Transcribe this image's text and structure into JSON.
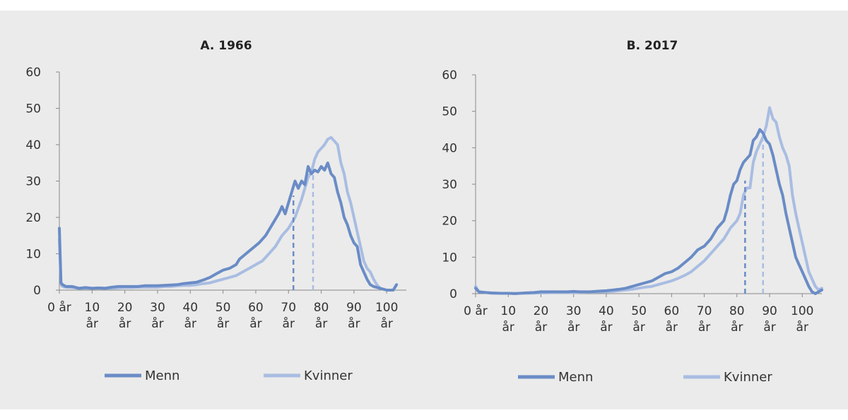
{
  "colors": {
    "menn": "#6a8cc6",
    "kvinner": "#a9bde2",
    "background": "#ebebeb"
  },
  "chart_data": [
    {
      "type": "line",
      "title": "A. 1966",
      "x_ticks": [
        0,
        10,
        20,
        30,
        40,
        50,
        60,
        70,
        80,
        90,
        100
      ],
      "x_tick_labels": [
        [
          "0 år"
        ],
        [
          "10",
          "år"
        ],
        [
          "20",
          "år"
        ],
        [
          "30",
          "år"
        ],
        [
          "40",
          "år"
        ],
        [
          "50",
          "år"
        ],
        [
          "60",
          "år"
        ],
        [
          "70",
          "år"
        ],
        [
          "80",
          "år"
        ],
        [
          "90",
          "år"
        ],
        [
          "100",
          "år"
        ]
      ],
      "xlim": [
        0,
        106
      ],
      "ylim": [
        0,
        60
      ],
      "y_ticks": [
        0,
        10,
        20,
        30,
        40,
        50,
        60
      ],
      "legend": "bottom",
      "series": [
        {
          "name": "Menn",
          "points": [
            [
              0,
              17
            ],
            [
              0.5,
              2
            ],
            [
              1,
              1.5
            ],
            [
              2,
              1
            ],
            [
              4,
              1
            ],
            [
              6,
              0.5
            ],
            [
              8,
              0.7
            ],
            [
              10,
              0.5
            ],
            [
              12,
              0.6
            ],
            [
              14,
              0.5
            ],
            [
              16,
              0.8
            ],
            [
              18,
              1
            ],
            [
              20,
              1
            ],
            [
              22,
              1
            ],
            [
              24,
              1
            ],
            [
              26,
              1.2
            ],
            [
              28,
              1.2
            ],
            [
              30,
              1.2
            ],
            [
              32,
              1.3
            ],
            [
              34,
              1.4
            ],
            [
              36,
              1.5
            ],
            [
              38,
              1.8
            ],
            [
              40,
              2
            ],
            [
              42,
              2.2
            ],
            [
              44,
              2.8
            ],
            [
              46,
              3.5
            ],
            [
              48,
              4.5
            ],
            [
              50,
              5.5
            ],
            [
              52,
              6
            ],
            [
              54,
              7
            ],
            [
              55,
              8.5
            ],
            [
              57,
              10
            ],
            [
              59,
              11.5
            ],
            [
              61,
              13
            ],
            [
              63,
              15
            ],
            [
              65,
              18
            ],
            [
              67,
              21
            ],
            [
              68,
              23
            ],
            [
              69,
              21
            ],
            [
              70,
              24
            ],
            [
              71,
              27
            ],
            [
              72,
              30
            ],
            [
              73,
              28
            ],
            [
              74,
              30
            ],
            [
              75,
              29
            ],
            [
              76,
              34
            ],
            [
              77,
              32
            ],
            [
              78,
              33
            ],
            [
              79,
              32.5
            ],
            [
              80,
              34
            ],
            [
              81,
              33
            ],
            [
              82,
              35
            ],
            [
              83,
              32
            ],
            [
              84,
              31
            ],
            [
              85,
              27
            ],
            [
              86,
              24
            ],
            [
              87,
              20
            ],
            [
              88,
              18
            ],
            [
              89,
              15
            ],
            [
              90,
              13
            ],
            [
              91,
              12
            ],
            [
              92,
              7
            ],
            [
              93,
              5
            ],
            [
              94,
              3
            ],
            [
              95,
              1.5
            ],
            [
              96,
              1
            ],
            [
              98,
              0.5
            ],
            [
              100,
              0
            ],
            [
              102,
              0
            ],
            [
              103,
              1.5
            ]
          ]
        },
        {
          "name": "Kvinner",
          "points": [
            [
              0,
              14
            ],
            [
              0.5,
              1.5
            ],
            [
              1,
              1
            ],
            [
              2,
              0.8
            ],
            [
              4,
              0.7
            ],
            [
              6,
              0.5
            ],
            [
              8,
              0.5
            ],
            [
              10,
              0.5
            ],
            [
              12,
              0.5
            ],
            [
              14,
              0.5
            ],
            [
              16,
              0.5
            ],
            [
              18,
              0.6
            ],
            [
              20,
              0.7
            ],
            [
              22,
              0.7
            ],
            [
              24,
              0.8
            ],
            [
              26,
              0.8
            ],
            [
              28,
              0.8
            ],
            [
              30,
              0.8
            ],
            [
              32,
              1
            ],
            [
              34,
              1
            ],
            [
              36,
              1.2
            ],
            [
              38,
              1.3
            ],
            [
              40,
              1.3
            ],
            [
              42,
              1.5
            ],
            [
              44,
              1.8
            ],
            [
              46,
              2
            ],
            [
              48,
              2.5
            ],
            [
              50,
              3
            ],
            [
              52,
              3.5
            ],
            [
              54,
              4
            ],
            [
              56,
              5
            ],
            [
              58,
              6
            ],
            [
              60,
              7
            ],
            [
              62,
              8
            ],
            [
              64,
              10
            ],
            [
              66,
              12
            ],
            [
              68,
              15
            ],
            [
              70,
              17
            ],
            [
              72,
              20
            ],
            [
              74,
              25
            ],
            [
              75,
              28
            ],
            [
              76,
              31
            ],
            [
              77,
              32.5
            ],
            [
              78,
              36
            ],
            [
              79,
              38
            ],
            [
              80,
              39
            ],
            [
              81,
              40
            ],
            [
              82,
              41.5
            ],
            [
              83,
              42
            ],
            [
              84,
              41
            ],
            [
              85,
              40
            ],
            [
              86,
              35
            ],
            [
              87,
              32
            ],
            [
              88,
              27
            ],
            [
              89,
              24
            ],
            [
              90,
              20
            ],
            [
              91,
              16
            ],
            [
              92,
              12
            ],
            [
              93,
              8
            ],
            [
              94,
              6
            ],
            [
              95,
              5
            ],
            [
              96,
              3
            ],
            [
              97,
              1.5
            ],
            [
              98,
              0.5
            ],
            [
              100,
              0
            ],
            [
              102,
              0
            ],
            [
              103,
              1.5
            ]
          ]
        }
      ],
      "markers": [
        {
          "series": "Menn",
          "x": 71.5,
          "y": 26
        },
        {
          "series": "Kvinner",
          "x": 77.5,
          "y": 32.5
        }
      ]
    },
    {
      "type": "line",
      "title": "B. 2017",
      "x_ticks": [
        0,
        10,
        20,
        30,
        40,
        50,
        60,
        70,
        80,
        90,
        100
      ],
      "x_tick_labels": [
        [
          "0 år"
        ],
        [
          "10",
          "år"
        ],
        [
          "20",
          "år"
        ],
        [
          "30",
          "år"
        ],
        [
          "40",
          "år"
        ],
        [
          "50",
          "år"
        ],
        [
          "60",
          "år"
        ],
        [
          "70",
          "år"
        ],
        [
          "80",
          "år"
        ],
        [
          "90",
          "år"
        ],
        [
          "100",
          "år"
        ]
      ],
      "xlim": [
        0,
        106
      ],
      "ylim": [
        0,
        60
      ],
      "y_ticks": [
        0,
        10,
        20,
        30,
        40,
        50,
        60
      ],
      "legend": "bottom",
      "series": [
        {
          "name": "Menn",
          "points": [
            [
              0,
              1.5
            ],
            [
              1,
              0.5
            ],
            [
              3,
              0.3
            ],
            [
              5,
              0.2
            ],
            [
              8,
              0.1
            ],
            [
              10,
              0.1
            ],
            [
              12,
              0
            ],
            [
              15,
              0.2
            ],
            [
              18,
              0.3
            ],
            [
              20,
              0.5
            ],
            [
              22,
              0.5
            ],
            [
              25,
              0.5
            ],
            [
              28,
              0.5
            ],
            [
              30,
              0.6
            ],
            [
              32,
              0.5
            ],
            [
              35,
              0.5
            ],
            [
              38,
              0.7
            ],
            [
              40,
              0.8
            ],
            [
              42,
              1
            ],
            [
              44,
              1.2
            ],
            [
              46,
              1.5
            ],
            [
              48,
              2
            ],
            [
              50,
              2.5
            ],
            [
              52,
              3
            ],
            [
              54,
              3.5
            ],
            [
              56,
              4.5
            ],
            [
              58,
              5.5
            ],
            [
              60,
              6
            ],
            [
              62,
              7
            ],
            [
              64,
              8.5
            ],
            [
              66,
              10
            ],
            [
              68,
              12
            ],
            [
              70,
              13
            ],
            [
              72,
              15
            ],
            [
              74,
              18
            ],
            [
              76,
              20
            ],
            [
              77,
              23
            ],
            [
              78,
              27
            ],
            [
              79,
              30
            ],
            [
              80,
              31
            ],
            [
              81,
              34
            ],
            [
              82,
              36
            ],
            [
              83,
              37
            ],
            [
              84,
              38
            ],
            [
              85,
              42
            ],
            [
              86,
              43
            ],
            [
              87,
              45
            ],
            [
              88,
              44
            ],
            [
              89,
              42
            ],
            [
              90,
              41
            ],
            [
              91,
              38
            ],
            [
              92,
              34
            ],
            [
              93,
              30
            ],
            [
              94,
              27
            ],
            [
              95,
              22
            ],
            [
              96,
              18
            ],
            [
              97,
              14
            ],
            [
              98,
              10
            ],
            [
              99,
              8
            ],
            [
              100,
              6
            ],
            [
              101,
              4
            ],
            [
              102,
              2
            ],
            [
              103,
              0.5
            ],
            [
              104,
              0
            ],
            [
              105,
              0.5
            ],
            [
              106,
              1
            ]
          ]
        },
        {
          "name": "Kvinner",
          "points": [
            [
              0,
              2
            ],
            [
              1,
              0.5
            ],
            [
              3,
              0.3
            ],
            [
              5,
              0.1
            ],
            [
              8,
              0.1
            ],
            [
              10,
              0.1
            ],
            [
              15,
              0.1
            ],
            [
              20,
              0.2
            ],
            [
              25,
              0.3
            ],
            [
              30,
              0.3
            ],
            [
              35,
              0.4
            ],
            [
              40,
              0.5
            ],
            [
              42,
              0.6
            ],
            [
              44,
              0.8
            ],
            [
              46,
              1
            ],
            [
              48,
              1.2
            ],
            [
              50,
              1.5
            ],
            [
              52,
              1.8
            ],
            [
              54,
              2
            ],
            [
              56,
              2.5
            ],
            [
              58,
              3
            ],
            [
              60,
              3.5
            ],
            [
              62,
              4.2
            ],
            [
              64,
              5
            ],
            [
              66,
              6
            ],
            [
              68,
              7.5
            ],
            [
              70,
              9
            ],
            [
              72,
              11
            ],
            [
              74,
              13
            ],
            [
              76,
              15
            ],
            [
              78,
              18
            ],
            [
              80,
              20
            ],
            [
              81,
              22
            ],
            [
              82,
              27
            ],
            [
              83,
              29
            ],
            [
              84,
              29
            ],
            [
              85,
              36
            ],
            [
              86,
              39
            ],
            [
              87,
              41
            ],
            [
              88,
              43
            ],
            [
              89,
              46
            ],
            [
              90,
              51
            ],
            [
              91,
              48
            ],
            [
              92,
              47
            ],
            [
              93,
              43
            ],
            [
              94,
              40
            ],
            [
              95,
              38
            ],
            [
              96,
              35
            ],
            [
              97,
              27
            ],
            [
              98,
              22
            ],
            [
              99,
              18
            ],
            [
              100,
              14
            ],
            [
              101,
              10
            ],
            [
              102,
              6
            ],
            [
              103,
              4
            ],
            [
              104,
              2
            ],
            [
              105,
              1
            ],
            [
              106,
              1.5
            ]
          ]
        }
      ],
      "markers": [
        {
          "series": "Menn",
          "x": 82.5,
          "y": 31
        },
        {
          "series": "Kvinner",
          "x": 88,
          "y": 42
        }
      ]
    }
  ],
  "panels_layout_names": [
    "panel-a",
    "panel-b"
  ]
}
